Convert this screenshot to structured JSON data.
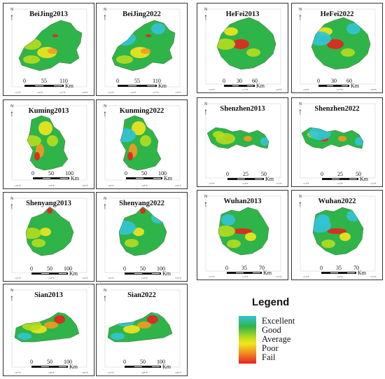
{
  "panels": [
    {
      "id": "beijing2013",
      "title": "BeiJing2013",
      "scale": [
        "0",
        "55",
        "110"
      ],
      "unit": "Km",
      "ticks": [
        "115°E",
        "116°E",
        "117°E",
        "118°E"
      ]
    },
    {
      "id": "beijing2022",
      "title": "BeiJing2022",
      "scale": [
        "0",
        "55",
        "110"
      ],
      "unit": "Km",
      "ticks": [
        "115°E",
        "116°E",
        "117°E",
        "118°E"
      ]
    },
    {
      "id": "hefei2013",
      "title": "HeFei2013",
      "scale": [
        "0",
        "30",
        "60"
      ],
      "unit": "Km",
      "ticks": [
        "116°E",
        "117°E",
        "118°E"
      ]
    },
    {
      "id": "hefei2022",
      "title": "HeFei2022",
      "scale": [
        "0",
        "30",
        "60"
      ],
      "unit": "Km",
      "ticks": [
        "116°E",
        "117°E",
        "118°E"
      ]
    },
    {
      "id": "kunming2013",
      "title": "Kuming2013",
      "scale": [
        "0",
        "50",
        "100"
      ],
      "unit": "Km",
      "ticks": [
        "102°E",
        "103°E",
        "104°E"
      ]
    },
    {
      "id": "kunming2022",
      "title": "Kunming2022",
      "scale": [
        "0",
        "50",
        "100"
      ],
      "unit": "Km",
      "ticks": [
        "102°E",
        "103°E",
        "104°E"
      ]
    },
    {
      "id": "shenzhen2013",
      "title": "Shenzhen2013",
      "scale": [
        "0",
        "25",
        "50"
      ],
      "unit": "Km",
      "ticks": [
        "113°E",
        "114°E",
        "115°E"
      ]
    },
    {
      "id": "shenzhen2022",
      "title": "Shenzhen2022",
      "scale": [
        "0",
        "25",
        "50"
      ],
      "unit": "Km",
      "ticks": [
        "113°E",
        "114°E",
        "115°E"
      ]
    },
    {
      "id": "shenyang2013",
      "title": "Shenyang2013",
      "scale": [
        "0",
        "50",
        "100"
      ],
      "unit": "Km",
      "ticks": [
        "122°E",
        "123°E",
        "124°E"
      ]
    },
    {
      "id": "shenyang2022",
      "title": "Shenyang2022",
      "scale": [
        "0",
        "50",
        "100"
      ],
      "unit": "Km",
      "ticks": [
        "122°E",
        "123°E",
        "124°E"
      ]
    },
    {
      "id": "wuhan2013",
      "title": "Wuhan2013",
      "scale": [
        "0",
        "35",
        "70"
      ],
      "unit": "Km",
      "ticks": [
        "113°E",
        "114°E",
        "115°E"
      ]
    },
    {
      "id": "wuhan2022",
      "title": "Wuhan2022",
      "scale": [
        "0",
        "35",
        "70"
      ],
      "unit": "Km",
      "ticks": [
        "113°E",
        "114°E",
        "115°E"
      ]
    },
    {
      "id": "sian2013",
      "title": "Sian2013",
      "scale": [
        "0",
        "50",
        "100"
      ],
      "unit": "Km",
      "ticks": [
        "107°E",
        "108°E",
        "109°E"
      ]
    },
    {
      "id": "sian2022",
      "title": "Sian2022",
      "scale": [
        "0",
        "50",
        "100"
      ],
      "unit": "Km",
      "ticks": [
        "107°E",
        "108°E",
        "109°E"
      ]
    }
  ],
  "north_label": "N",
  "legend": {
    "title": "Legend",
    "items": [
      "Excellent",
      "Good",
      "Average",
      "Poor",
      "Fail"
    ],
    "colors": [
      "#33c4d8",
      "#2fb44a",
      "#b6dd1e",
      "#f2e51d",
      "#e8211e"
    ]
  }
}
